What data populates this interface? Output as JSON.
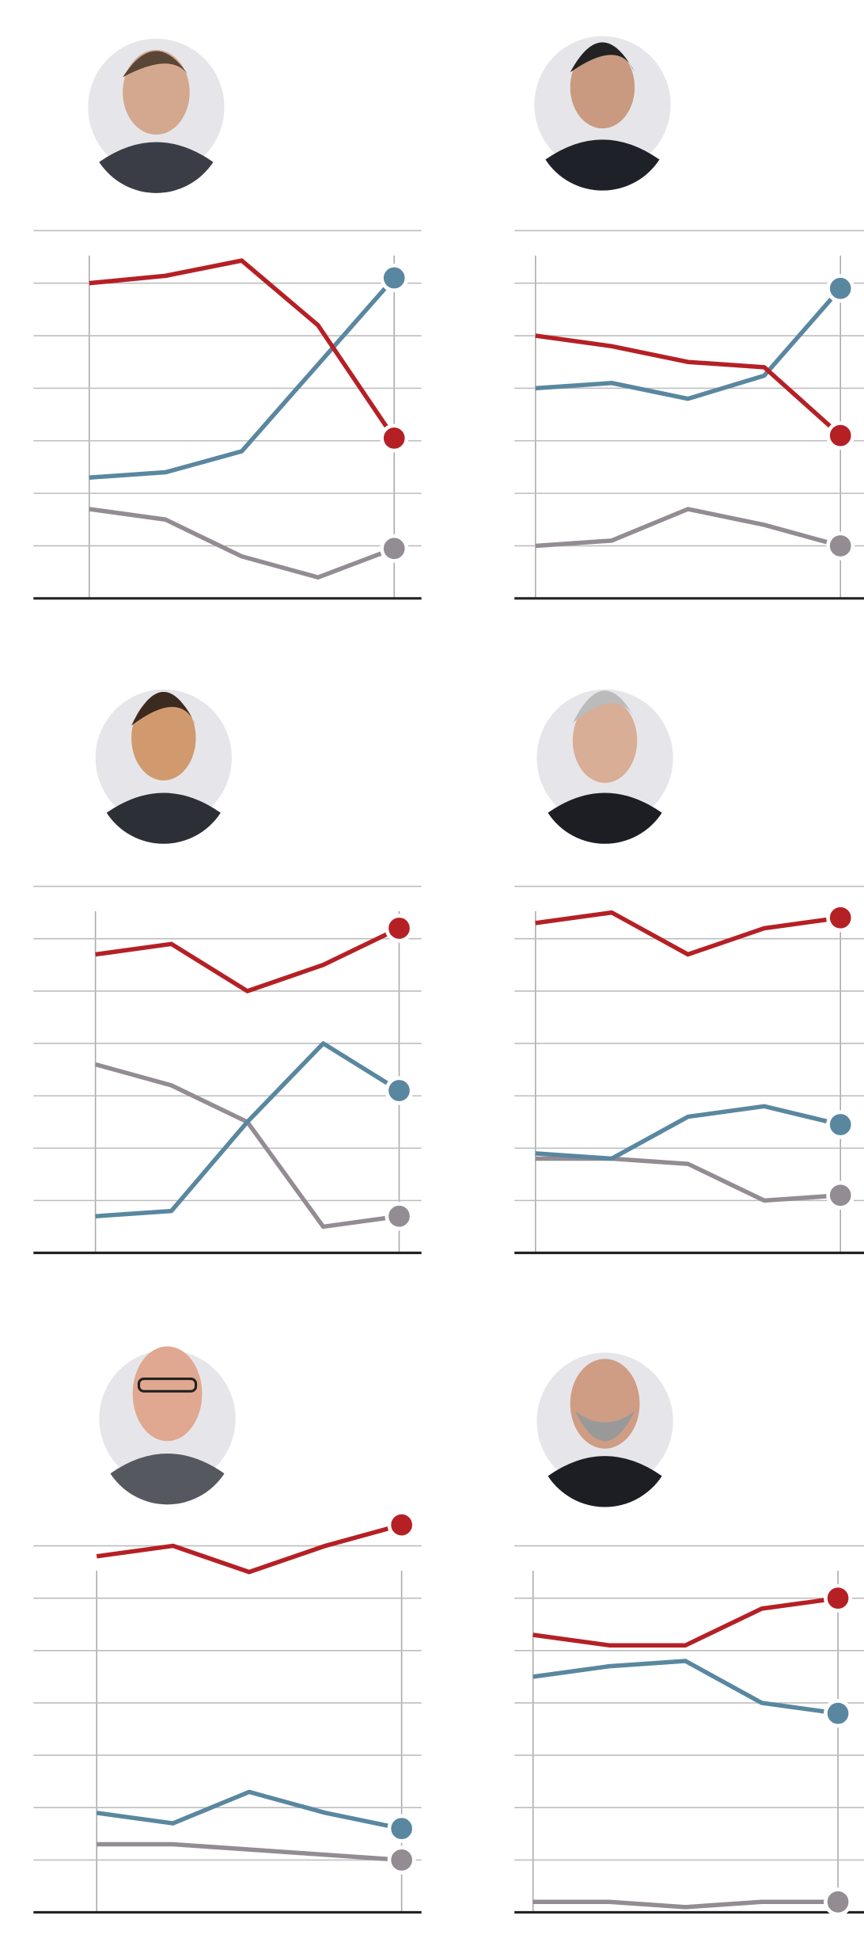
{
  "chart_data": [
    {
      "type": "line",
      "ylim": [
        0,
        70
      ],
      "yticks": [
        0,
        10,
        20,
        30,
        40,
        50,
        60,
        70
      ],
      "grid": true,
      "series": [
        {
          "color": "#938c93",
          "values": [
            17,
            15,
            8,
            4,
            9.5
          ]
        },
        {
          "color": "#5a87a0",
          "values": [
            23,
            24,
            28,
            44.5,
            61
          ]
        },
        {
          "color": "#b52025",
          "values": [
            60,
            61.4,
            64.3,
            52,
            30.5
          ]
        }
      ]
    },
    {
      "type": "line",
      "ylim": [
        0,
        70
      ],
      "yticks": [
        0,
        10,
        20,
        30,
        40,
        50,
        60,
        70
      ],
      "grid": true,
      "series": [
        {
          "color": "#938c93",
          "values": [
            10,
            11,
            17,
            14,
            10
          ]
        },
        {
          "color": "#5a87a0",
          "values": [
            40,
            41,
            38,
            42.4,
            59
          ]
        },
        {
          "color": "#b52025",
          "values": [
            50,
            48,
            45,
            44,
            31
          ]
        }
      ]
    },
    {
      "type": "line",
      "ylim": [
        0,
        70
      ],
      "yticks": [
        0,
        10,
        20,
        30,
        40,
        50,
        60,
        70
      ],
      "grid": true,
      "series": [
        {
          "color": "#938c93",
          "values": [
            36,
            32,
            25,
            5,
            7
          ]
        },
        {
          "color": "#5a87a0",
          "values": [
            7,
            8,
            25,
            40,
            31
          ]
        },
        {
          "color": "#b52025",
          "values": [
            57,
            59,
            50,
            55,
            62
          ]
        }
      ]
    },
    {
      "type": "line",
      "ylim": [
        0,
        70
      ],
      "yticks": [
        0,
        10,
        20,
        30,
        40,
        50,
        60,
        70
      ],
      "grid": true,
      "series": [
        {
          "color": "#938c93",
          "values": [
            18,
            18,
            17,
            10,
            11
          ]
        },
        {
          "color": "#5a87a0",
          "values": [
            19,
            18,
            26,
            28,
            24.5
          ]
        },
        {
          "color": "#b52025",
          "values": [
            63,
            65,
            57,
            62,
            64
          ]
        }
      ]
    },
    {
      "type": "line",
      "ylim": [
        0,
        70
      ],
      "yticks": [
        0,
        10,
        20,
        30,
        40,
        50,
        60,
        70
      ],
      "grid": true,
      "series": [
        {
          "color": "#938c93",
          "values": [
            13,
            13,
            12,
            11,
            10
          ]
        },
        {
          "color": "#5a87a0",
          "values": [
            19,
            17,
            23,
            19,
            16
          ]
        },
        {
          "color": "#b52025",
          "values": [
            68,
            70,
            65,
            70,
            74
          ]
        }
      ]
    },
    {
      "type": "line",
      "ylim": [
        0,
        70
      ],
      "yticks": [
        0,
        10,
        20,
        30,
        40,
        50,
        60,
        70
      ],
      "grid": true,
      "series": [
        {
          "color": "#938c93",
          "values": [
            2,
            2,
            1,
            2,
            2
          ]
        },
        {
          "color": "#5a87a0",
          "values": [
            45,
            47,
            48,
            40,
            38
          ]
        },
        {
          "color": "#b52025",
          "values": [
            53,
            51,
            51,
            58,
            60
          ]
        }
      ]
    }
  ]
}
